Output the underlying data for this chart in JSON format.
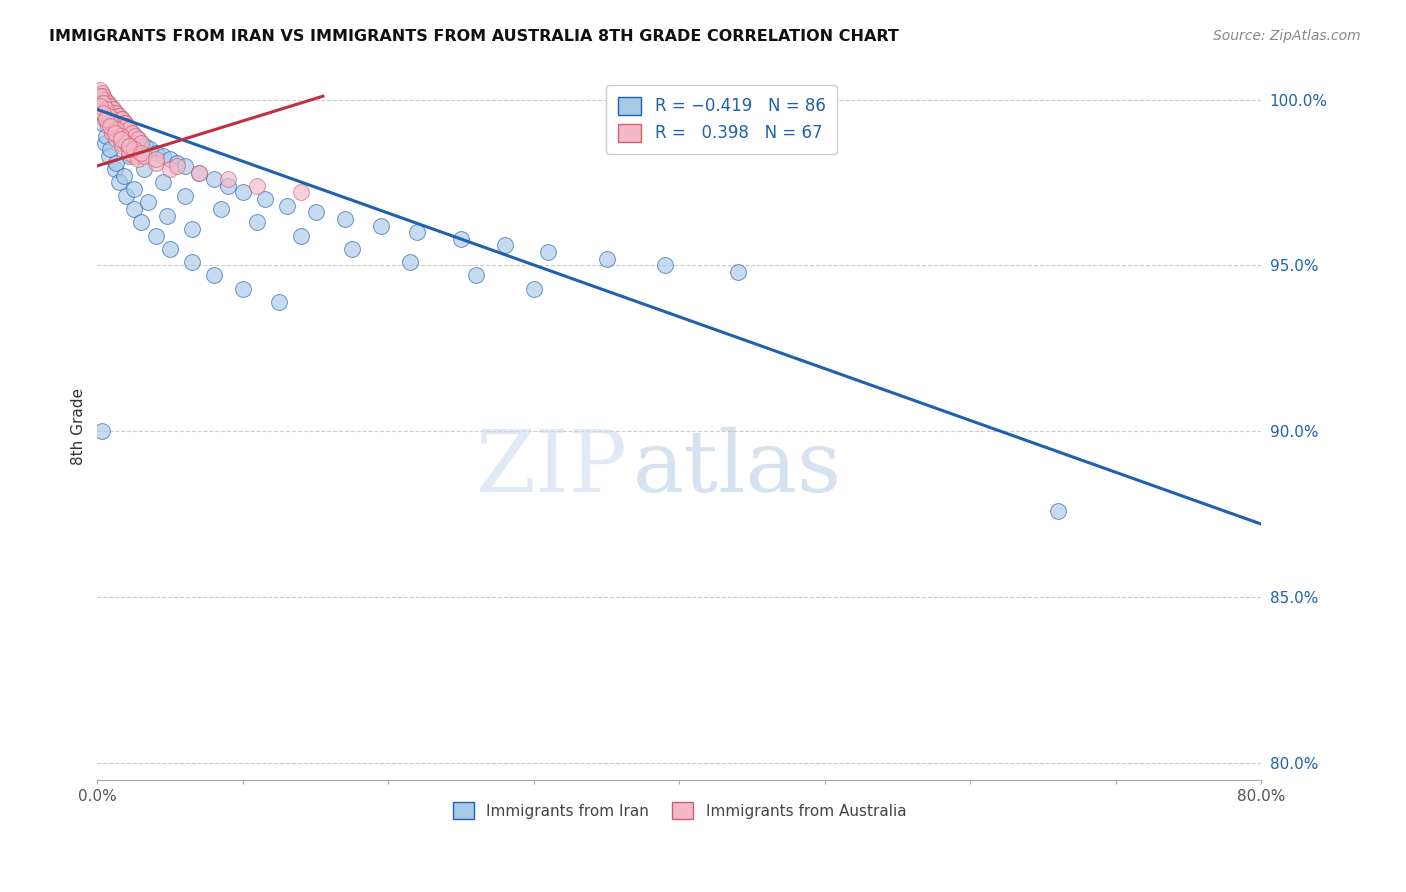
{
  "title": "IMMIGRANTS FROM IRAN VS IMMIGRANTS FROM AUSTRALIA 8TH GRADE CORRELATION CHART",
  "source": "Source: ZipAtlas.com",
  "ylabel_left": "8th Grade",
  "legend_label_blue": "Immigrants from Iran",
  "legend_label_pink": "Immigrants from Australia",
  "r_blue": -0.419,
  "n_blue": 86,
  "r_pink": 0.398,
  "n_pink": 67,
  "xlim": [
    0.0,
    0.8
  ],
  "ylim": [
    0.795,
    1.008
  ],
  "yticks_right": [
    1.0,
    0.95,
    0.9,
    0.85,
    0.8
  ],
  "ytick_labels_right": [
    "100.0%",
    "95.0%",
    "90.0%",
    "85.0%",
    "80.0%"
  ],
  "xticks": [
    0.0,
    0.1,
    0.2,
    0.3,
    0.4,
    0.5,
    0.6,
    0.7,
    0.8
  ],
  "xtick_labels": [
    "0.0%",
    "",
    "",
    "",
    "",
    "",
    "",
    "",
    "80.0%"
  ],
  "color_blue": "#a8c8e8",
  "color_pink": "#f4b8c8",
  "line_color_blue": "#2060b0",
  "line_color_pink": "#c03040",
  "watermark_zip": "ZIP",
  "watermark_atlas": "atlas",
  "blue_line_x": [
    0.0,
    0.8
  ],
  "blue_line_y": [
    0.997,
    0.872
  ],
  "pink_line_x": [
    0.0,
    0.155
  ],
  "pink_line_y": [
    0.98,
    1.001
  ],
  "blue_x": [
    0.003,
    0.005,
    0.006,
    0.007,
    0.008,
    0.009,
    0.01,
    0.011,
    0.012,
    0.013,
    0.014,
    0.015,
    0.016,
    0.017,
    0.018,
    0.019,
    0.02,
    0.022,
    0.024,
    0.026,
    0.028,
    0.03,
    0.033,
    0.036,
    0.04,
    0.045,
    0.05,
    0.055,
    0.06,
    0.07,
    0.08,
    0.09,
    0.1,
    0.115,
    0.13,
    0.15,
    0.17,
    0.195,
    0.22,
    0.25,
    0.28,
    0.31,
    0.35,
    0.39,
    0.44,
    0.005,
    0.008,
    0.012,
    0.015,
    0.02,
    0.025,
    0.03,
    0.04,
    0.05,
    0.065,
    0.08,
    0.1,
    0.125,
    0.003,
    0.006,
    0.009,
    0.013,
    0.018,
    0.025,
    0.035,
    0.048,
    0.065,
    0.003,
    0.007,
    0.011,
    0.016,
    0.022,
    0.032,
    0.045,
    0.06,
    0.085,
    0.11,
    0.14,
    0.175,
    0.215,
    0.26,
    0.3,
    0.66,
    0.003
  ],
  "blue_y": [
    1.001,
    1.0,
    0.999,
    0.999,
    0.998,
    0.998,
    0.997,
    0.997,
    0.996,
    0.996,
    0.995,
    0.995,
    0.994,
    0.994,
    0.993,
    0.993,
    0.992,
    0.991,
    0.99,
    0.989,
    0.988,
    0.987,
    0.986,
    0.985,
    0.984,
    0.983,
    0.982,
    0.981,
    0.98,
    0.978,
    0.976,
    0.974,
    0.972,
    0.97,
    0.968,
    0.966,
    0.964,
    0.962,
    0.96,
    0.958,
    0.956,
    0.954,
    0.952,
    0.95,
    0.948,
    0.987,
    0.983,
    0.979,
    0.975,
    0.971,
    0.967,
    0.963,
    0.959,
    0.955,
    0.951,
    0.947,
    0.943,
    0.939,
    0.993,
    0.989,
    0.985,
    0.981,
    0.977,
    0.973,
    0.969,
    0.965,
    0.961,
    0.999,
    0.995,
    0.991,
    0.987,
    0.983,
    0.979,
    0.975,
    0.971,
    0.967,
    0.963,
    0.959,
    0.955,
    0.951,
    0.947,
    0.943,
    0.876,
    0.9
  ],
  "pink_x": [
    0.002,
    0.003,
    0.004,
    0.005,
    0.006,
    0.007,
    0.008,
    0.009,
    0.01,
    0.011,
    0.012,
    0.013,
    0.014,
    0.015,
    0.016,
    0.017,
    0.018,
    0.019,
    0.02,
    0.022,
    0.024,
    0.026,
    0.028,
    0.03,
    0.003,
    0.005,
    0.007,
    0.009,
    0.011,
    0.014,
    0.017,
    0.021,
    0.025,
    0.003,
    0.005,
    0.007,
    0.01,
    0.013,
    0.017,
    0.022,
    0.028,
    0.002,
    0.004,
    0.006,
    0.008,
    0.01,
    0.013,
    0.016,
    0.02,
    0.025,
    0.032,
    0.04,
    0.05,
    0.002,
    0.004,
    0.006,
    0.009,
    0.012,
    0.016,
    0.022,
    0.03,
    0.04,
    0.055,
    0.07,
    0.09,
    0.11,
    0.14
  ],
  "pink_y": [
    1.003,
    1.002,
    1.001,
    1.0,
    0.999,
    0.999,
    0.998,
    0.998,
    0.997,
    0.997,
    0.996,
    0.996,
    0.995,
    0.995,
    0.994,
    0.994,
    0.993,
    0.993,
    0.992,
    0.991,
    0.99,
    0.989,
    0.988,
    0.987,
    0.999,
    0.997,
    0.995,
    0.993,
    0.991,
    0.989,
    0.987,
    0.985,
    0.983,
    0.996,
    0.994,
    0.992,
    0.99,
    0.988,
    0.986,
    0.984,
    0.982,
    1.001,
    0.999,
    0.997,
    0.995,
    0.993,
    0.991,
    0.989,
    0.987,
    0.985,
    0.983,
    0.981,
    0.979,
    0.998,
    0.996,
    0.994,
    0.992,
    0.99,
    0.988,
    0.986,
    0.984,
    0.982,
    0.98,
    0.978,
    0.976,
    0.974,
    0.972
  ]
}
